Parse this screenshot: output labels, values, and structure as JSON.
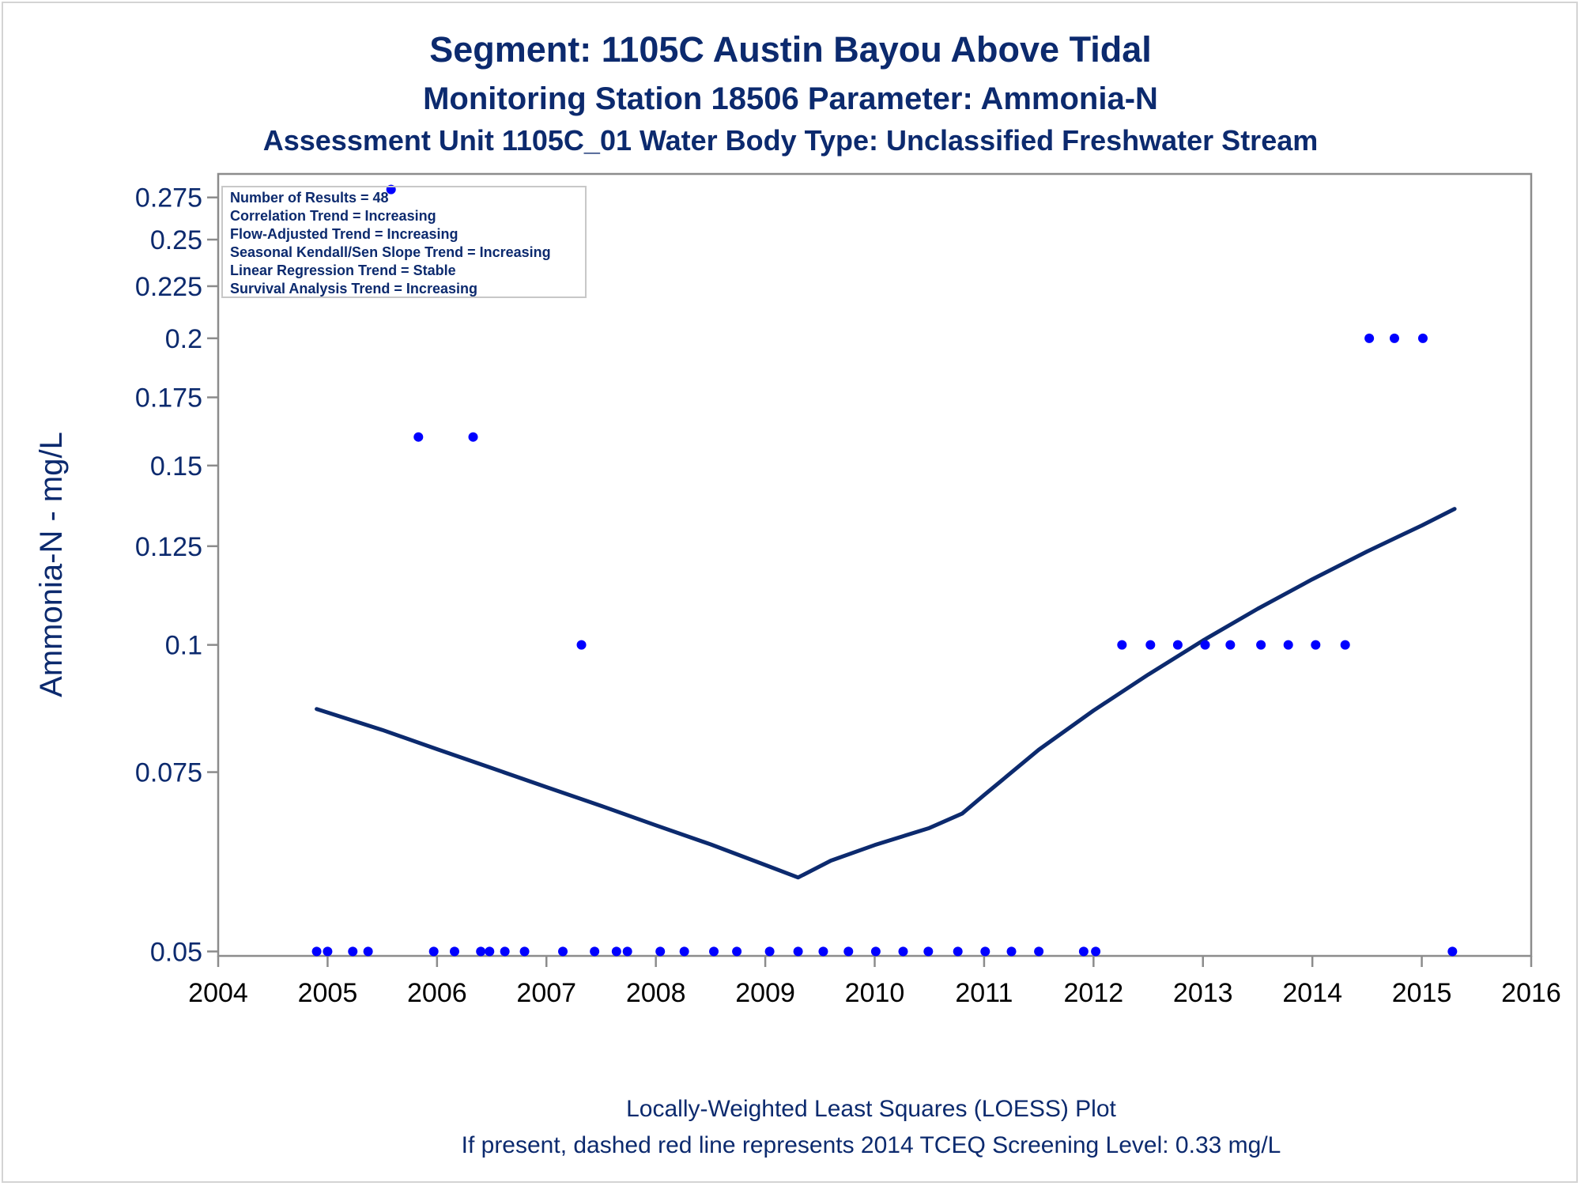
{
  "chart_data": {
    "type": "scatter",
    "title": "Segment: 1105C  Austin Bayou Above Tidal",
    "subtitle": "Monitoring Station 18506 Parameter: Ammonia-N",
    "subtitle2": "Assessment Unit 1105C_01   Water Body Type: Unclassified Freshwater Stream",
    "xlabel": "",
    "ylabel": "Ammonia-N - mg/L",
    "xlim": [
      2004,
      2016
    ],
    "ylim": [
      0.0495,
      0.29
    ],
    "y_scale": "log",
    "grid": false,
    "x_ticks": [
      "2004",
      "2005",
      "2006",
      "2007",
      "2008",
      "2009",
      "2010",
      "2011",
      "2012",
      "2013",
      "2014",
      "2015",
      "2016"
    ],
    "y_ticks": [
      "0.05",
      "0.075",
      "0.1",
      "0.125",
      "0.15",
      "0.175",
      "0.2",
      "0.225",
      "0.25",
      "0.275"
    ],
    "colors": {
      "points": "#0000ff",
      "loess": "#0c2a6e",
      "text": "#0c2a6e"
    },
    "series": [
      {
        "type": "scatter",
        "x": [
          2004.9,
          2005.0,
          2005.23,
          2005.37,
          2005.58,
          2005.83,
          2005.97,
          2006.16,
          2006.33,
          2006.4,
          2006.48,
          2006.62,
          2006.8,
          2007.15,
          2007.32,
          2007.44,
          2007.64,
          2007.74,
          2008.04,
          2008.26,
          2008.53,
          2008.74,
          2009.04,
          2009.3,
          2009.53,
          2009.76,
          2010.01,
          2010.26,
          2010.49,
          2010.76,
          2011.01,
          2011.25,
          2011.5,
          2011.91,
          2012.02,
          2012.26,
          2012.52,
          2012.77,
          2013.02,
          2013.25,
          2013.53,
          2013.78,
          2014.03,
          2014.3,
          2014.52,
          2014.75,
          2015.01,
          2015.28
        ],
        "y": [
          0.05,
          0.05,
          0.05,
          0.05,
          0.28,
          0.16,
          0.05,
          0.05,
          0.16,
          0.05,
          0.05,
          0.05,
          0.05,
          0.05,
          0.1,
          0.05,
          0.05,
          0.05,
          0.05,
          0.05,
          0.05,
          0.05,
          0.05,
          0.05,
          0.05,
          0.05,
          0.05,
          0.05,
          0.05,
          0.05,
          0.05,
          0.05,
          0.05,
          0.05,
          0.05,
          0.1,
          0.1,
          0.1,
          0.1,
          0.1,
          0.1,
          0.1,
          0.1,
          0.1,
          0.2,
          0.2,
          0.2,
          0.05
        ]
      },
      {
        "type": "line",
        "x": [
          2004.9,
          2005.5,
          2006.0,
          2006.5,
          2007.0,
          2007.5,
          2008.0,
          2008.5,
          2009.0,
          2009.3,
          2009.6,
          2010.0,
          2010.5,
          2010.8,
          2011.0,
          2011.5,
          2012.0,
          2012.5,
          2013.0,
          2013.5,
          2014.0,
          2014.5,
          2015.0,
          2015.3
        ],
        "y": [
          0.0865,
          0.0825,
          0.079,
          0.0757,
          0.0725,
          0.0695,
          0.0665,
          0.0637,
          0.0608,
          0.0591,
          0.0614,
          0.0636,
          0.0661,
          0.0683,
          0.0712,
          0.0789,
          0.0862,
          0.0935,
          0.101,
          0.1085,
          0.116,
          0.1235,
          0.131,
          0.136
        ]
      }
    ],
    "stats_box": [
      "Number of Results = 48",
      "Correlation Trend = Increasing",
      "Flow-Adjusted Trend = Increasing",
      "Seasonal Kendall/Sen Slope Trend = Increasing",
      "Linear Regression Trend = Stable",
      "Survival Analysis Trend = Increasing"
    ],
    "footnotes": [
      "Locally-Weighted Least Squares (LOESS) Plot",
      "If present, dashed red line represents 2014 TCEQ Screening Level: 0.33 mg/L"
    ]
  }
}
